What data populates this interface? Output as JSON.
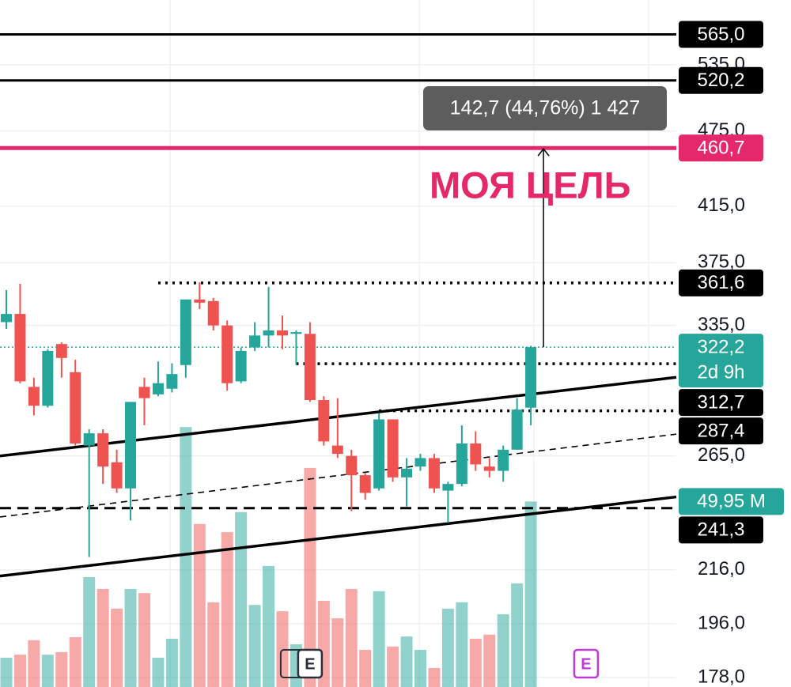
{
  "chart_data": {
    "type": "candlestick",
    "log_scale": true,
    "grid": true,
    "ylim": [
      175,
      601
    ],
    "yticks": [
      {
        "value": 535,
        "label": "535,0"
      },
      {
        "value": 475,
        "label": "475,0"
      },
      {
        "value": 415,
        "label": "415,0"
      },
      {
        "value": 375,
        "label": "375,0"
      },
      {
        "value": 335,
        "label": "335,0"
      },
      {
        "value": 265,
        "label": "265,0"
      },
      {
        "value": 216,
        "label": "216,0"
      },
      {
        "value": 196,
        "label": "196,0"
      },
      {
        "value": 178,
        "label": "178,0"
      }
    ],
    "up_color": "#26a69a",
    "down_color": "#ef5350",
    "candles": {
      "open": [
        337,
        342,
        300,
        290,
        324,
        308,
        270,
        276,
        262,
        250,
        300,
        296,
        299,
        312,
        351,
        350,
        335,
        303,
        322,
        329,
        332,
        330,
        330,
        293,
        270,
        265,
        256,
        250,
        283,
        255,
        260,
        264,
        249,
        252,
        271,
        260,
        258,
        268,
        289
      ],
      "high": [
        357,
        361,
        305,
        321,
        325,
        315,
        278,
        278,
        268,
        292,
        305,
        314,
        313,
        351,
        362,
        352,
        338,
        322,
        337,
        359,
        341,
        332,
        337,
        295,
        294,
        268,
        257,
        286,
        283,
        264,
        266,
        266,
        253,
        280,
        277,
        264,
        270,
        294,
        323
      ],
      "low": [
        333,
        302,
        285,
        289,
        305,
        270,
        221,
        252,
        248,
        236,
        280,
        295,
        297,
        305,
        345,
        332,
        298,
        302,
        320,
        322,
        321,
        312,
        292,
        270,
        264,
        240,
        245,
        249,
        253,
        242,
        258,
        248,
        235,
        251,
        258,
        255,
        253,
        268,
        280
      ],
      "close": [
        342,
        303,
        290,
        320,
        316,
        271,
        276,
        260,
        250,
        292,
        294,
        302,
        307,
        351,
        349,
        335,
        302,
        320,
        329,
        332,
        329,
        331,
        293,
        272,
        266,
        256,
        248,
        283,
        255,
        259,
        264,
        250,
        252,
        271,
        261,
        258,
        268,
        288,
        322.2
      ]
    },
    "volume": [
      7.9,
      8.7,
      12.6,
      8.7,
      9.4,
      13.4,
      29.6,
      26.4,
      21.1,
      26.4,
      25.3,
      7.9,
      13.0,
      70.0,
      43.9,
      22.8,
      41.7,
      47.1,
      22.1,
      32.6,
      20.4,
      11.5,
      59.0,
      23.2,
      18.5,
      26.4,
      10.0,
      25.8,
      10.9,
      13.6,
      10.0,
      5.1,
      21.1,
      22.8,
      13.0,
      14.1,
      19.6,
      27.9,
      49.95
    ],
    "volume_ylim": [
      0,
      185
    ],
    "levels": [
      {
        "value": 565,
        "label": "565,0",
        "color": "#000000",
        "style": "solid",
        "from": 0
      },
      {
        "value": 520.2,
        "label": "520,2",
        "color": "#000000",
        "style": "solid",
        "from": 0
      },
      {
        "value": 460.7,
        "label": "460,7",
        "color": "#e4286a",
        "style": "bold",
        "from": 0
      },
      {
        "value": 361.6,
        "label": "361,6",
        "color": "#000000",
        "style": "dotted",
        "from": 11
      },
      {
        "value": 312.7,
        "label": "312,7",
        "color": "#000000",
        "style": "dotted",
        "from": 21
      },
      {
        "value": 287.4,
        "label": "287,4",
        "color": "#000000",
        "style": "dotted",
        "from": 27
      },
      {
        "value": 241.3,
        "label": "241,3",
        "color": "#000000",
        "style": "dashed",
        "from": 0
      }
    ],
    "trendlines": [
      {
        "values": [
          265,
          305.2
        ],
        "style": "solid"
      },
      {
        "values": [
          237.5,
          275.6
        ],
        "style": "dashed"
      },
      {
        "values": [
          213.6,
          246.2
        ],
        "style": "solid"
      }
    ],
    "last_price": {
      "value": 322.2,
      "label": "322,2"
    },
    "countdown": "2d 9h",
    "last_volume": {
      "value": 49.95,
      "label": "49,95 M"
    },
    "measure_label": "142,7 (44,76%) 1 427",
    "annotation": "МОЯ ЦЕЛЬ",
    "events": [
      {
        "label": "E",
        "index": 22
      },
      {
        "label": "E",
        "index": 42
      }
    ]
  }
}
